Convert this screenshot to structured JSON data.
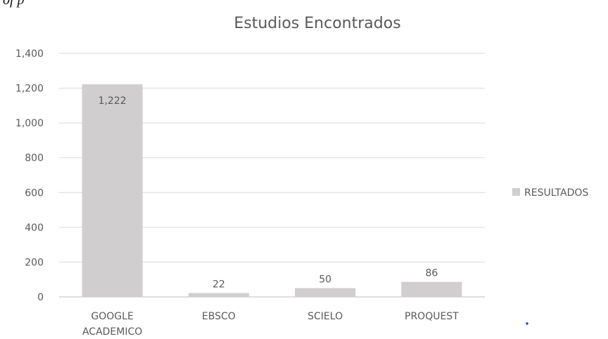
{
  "page": {
    "top_fragment": "of                                                             p"
  },
  "colors": {
    "bar": "#d0cece",
    "dot": "#1f3fe0",
    "text": "#595959"
  },
  "chart_data": {
    "type": "bar",
    "title": "Estudios Encontrados",
    "categories": [
      [
        "GOOGLE",
        "ACADEMICO"
      ],
      [
        "EBSCO"
      ],
      [
        "SCIELO"
      ],
      [
        "PROQUEST"
      ]
    ],
    "series": [
      {
        "name": "RESULTADOS",
        "values": [
          1222,
          22,
          50,
          86
        ]
      }
    ],
    "data_labels": [
      "1,222",
      "22",
      "50",
      "86"
    ],
    "ylim": [
      0,
      1400
    ],
    "yticks": [
      0,
      200,
      400,
      600,
      800,
      1000,
      1200,
      1400
    ],
    "ytick_labels": [
      "0",
      "200",
      "400",
      "600",
      "800",
      "1,000",
      "1,200",
      "1,400"
    ],
    "grid": true,
    "legend_position": "right"
  }
}
